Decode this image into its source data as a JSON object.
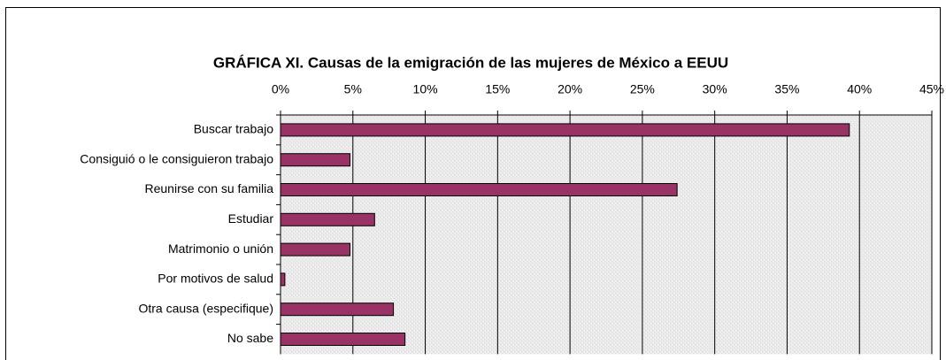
{
  "chart_data": {
    "type": "hbar",
    "title": "GRÁFICA XI. Causas de la emigración de las mujeres de México a EEUU",
    "categories": [
      "Buscar trabajo",
      "Consiguió o le consiguieron trabajo",
      "Reunirse con su familia",
      "Estudiar",
      "Matrimonio o unión",
      "Por motivos de salud",
      "Otra causa (especifique)",
      "No sabe"
    ],
    "values": [
      39.3,
      4.8,
      27.4,
      6.5,
      4.8,
      0.3,
      7.8,
      8.6
    ],
    "color": "#993366",
    "xlim": [
      0,
      45
    ],
    "xticks": [
      {
        "value": 0,
        "label": "0%"
      },
      {
        "value": 5,
        "label": "5%"
      },
      {
        "value": 10,
        "label": "10%"
      },
      {
        "value": 15,
        "label": "15%"
      },
      {
        "value": 20,
        "label": "20%"
      },
      {
        "value": 25,
        "label": "25%"
      },
      {
        "value": 30,
        "label": "30%"
      },
      {
        "value": 35,
        "label": "35%"
      },
      {
        "value": 40,
        "label": "40%"
      },
      {
        "value": 45,
        "label": "45%"
      }
    ],
    "grid": true
  }
}
